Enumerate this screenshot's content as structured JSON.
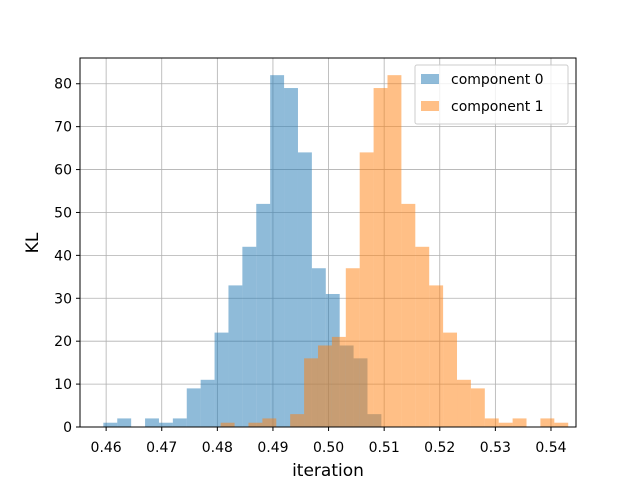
{
  "chart_data": {
    "type": "bar",
    "title": "",
    "xlabel": "iteration",
    "ylabel": "KL",
    "xlim": [
      0.5553,
      0.5445
    ],
    "xlim_note": "",
    "ylim": [
      0,
      86
    ],
    "grid": true,
    "legend_position": "top-right",
    "xticks": [
      0.46,
      0.47,
      0.48,
      0.49,
      0.5,
      0.51,
      0.52,
      0.53,
      0.54
    ],
    "xtick_labels": [
      "0.46",
      "0.47",
      "0.48",
      "0.49",
      "0.50",
      "0.51",
      "0.52",
      "0.53",
      "0.54"
    ],
    "yticks": [
      0,
      10,
      20,
      30,
      40,
      50,
      60,
      70,
      80
    ],
    "ytick_labels": [
      "0",
      "10",
      "20",
      "30",
      "40",
      "50",
      "60",
      "70",
      "80"
    ],
    "series": [
      {
        "name": "component 0",
        "color": "#1f77b4",
        "alpha": 0.5,
        "bin_edges": [
          0.4595,
          0.462,
          0.4645,
          0.467,
          0.4695,
          0.472,
          0.4745,
          0.477,
          0.4795,
          0.482,
          0.4845,
          0.487,
          0.4895,
          0.492,
          0.4945,
          0.497,
          0.4995,
          0.502,
          0.5045,
          0.507
        ],
        "values": [
          1,
          2,
          0,
          2,
          1,
          2,
          9,
          11,
          22,
          33,
          42,
          52,
          82,
          79,
          64,
          37,
          31,
          19,
          16,
          3
        ]
      },
      {
        "name": "component 1",
        "color": "#ff7f0e",
        "alpha": 0.5,
        "bin_edges": [
          0.4806,
          0.4831,
          0.4856,
          0.4881,
          0.4906,
          0.4931,
          0.4956,
          0.4981,
          0.5006,
          0.5031,
          0.5056,
          0.5081,
          0.5106,
          0.5131,
          0.5156,
          0.5181,
          0.5206,
          0.5231,
          0.5256,
          0.5281,
          0.5306,
          0.5331,
          0.5356,
          0.5381,
          0.5406
        ],
        "values": [
          1,
          0,
          1,
          2,
          0,
          3,
          16,
          19,
          21,
          37,
          64,
          79,
          82,
          52,
          42,
          33,
          22,
          11,
          9,
          2,
          1,
          2,
          0,
          2,
          1
        ]
      }
    ]
  }
}
